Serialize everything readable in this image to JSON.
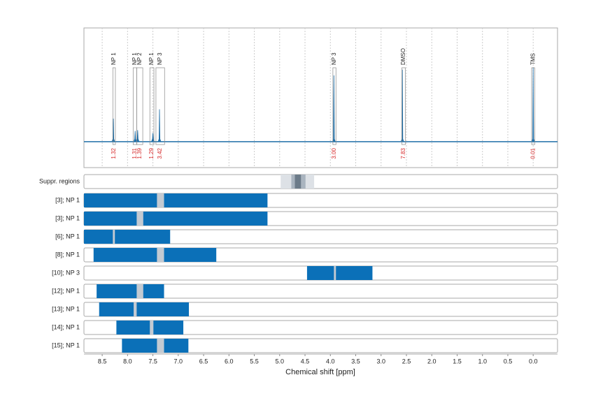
{
  "chart_data": {
    "type": "nmr",
    "xlabel": "Chemical shift [ppm]",
    "xlim": [
      8.86,
      -0.48
    ],
    "xticks": [
      8.5,
      {
        "value": 8.0,
        "label": "8.0"
      },
      7.5,
      {
        "value": 7.0,
        "label": "7.0"
      },
      6.5,
      {
        "value": 6.0,
        "label": "6.0"
      },
      5.5,
      {
        "value": 5.0,
        "label": "5.0"
      },
      4.5,
      {
        "value": 4.0,
        "label": "4.0"
      },
      3.5,
      {
        "value": 3.0,
        "label": "3.0"
      },
      2.5,
      {
        "value": 2.0,
        "label": "2.0"
      },
      1.5,
      {
        "value": 1.0,
        "label": "1.0"
      },
      0.5,
      {
        "value": 0.0,
        "label": "0.0"
      }
    ],
    "grid": true,
    "ylim": [
      -0.36,
      1.58
    ],
    "color": "#1f6fa8",
    "peaks": [
      {
        "ppm": 8.28,
        "height": 0.32
      },
      {
        "ppm": 7.85,
        "height": 0.15
      },
      {
        "ppm": 7.8,
        "height": 0.16
      },
      {
        "ppm": 7.5,
        "height": 0.12
      },
      {
        "ppm": 7.37,
        "height": 0.45
      },
      {
        "ppm": 3.93,
        "height": 0.92
      },
      {
        "ppm": 2.58,
        "height": 1.0
      },
      {
        "ppm": 0.0,
        "height": 1.03
      }
    ],
    "annotations": [
      {
        "label": "NP 1",
        "start": 8.29,
        "end": 8.24,
        "integral": "1.32"
      },
      {
        "label": "NP 1",
        "start": 7.89,
        "end": 7.82,
        "integral": "1.31"
      },
      {
        "label": "NP 2",
        "start": 7.82,
        "end": 7.7,
        "integral": "1.39"
      },
      {
        "label": "NP 1",
        "start": 7.56,
        "end": 7.48,
        "integral": "1.29"
      },
      {
        "label": "NP 3",
        "start": 7.44,
        "end": 7.27,
        "integral": "3.42"
      },
      {
        "label": "NP 3",
        "start": 3.95,
        "end": 3.89,
        "integral": "3.00"
      },
      {
        "label": "DMSO",
        "start": 2.59,
        "end": 2.52,
        "integral": "7.83"
      },
      {
        "label": "TMS",
        "start": 0.03,
        "end": -0.03,
        "integral": "0.01"
      }
    ],
    "suppression": {
      "label": "Suppr. regions",
      "regions": [
        {
          "start": 4.98,
          "end": 4.32,
          "color": "#dde1e6"
        },
        {
          "start": 4.77,
          "end": 4.49,
          "color": "#a9b4bf"
        },
        {
          "start": 4.7,
          "end": 4.58,
          "color": "#6c7b89"
        }
      ]
    },
    "bar_color": "#0b70b8",
    "marker_color": "#c3cad2",
    "rows": [
      {
        "label": "[3]; NP 1",
        "start": 8.86,
        "end": 5.24,
        "marker_start": 7.42,
        "marker_end": 7.28
      },
      {
        "label": "[3]; NP 1",
        "start": 8.86,
        "end": 5.24,
        "marker_start": 7.82,
        "marker_end": 7.69
      },
      {
        "label": "[6]; NP 1",
        "start": 8.86,
        "end": 7.16,
        "marker_start": 8.29,
        "marker_end": 8.25
      },
      {
        "label": "[8]; NP 1",
        "start": 8.67,
        "end": 6.25,
        "marker_start": 7.42,
        "marker_end": 7.28
      },
      {
        "label": "[10]; NP 3",
        "start": 4.46,
        "end": 3.17,
        "marker_start": 3.93,
        "marker_end": 3.89
      },
      {
        "label": "[12]; NP 1",
        "start": 8.61,
        "end": 7.28,
        "marker_start": 7.82,
        "marker_end": 7.69
      },
      {
        "label": "[13]; NP 1",
        "start": 8.56,
        "end": 6.79,
        "marker_start": 7.88,
        "marker_end": 7.82
      },
      {
        "label": "[14]; NP 1",
        "start": 8.22,
        "end": 6.9,
        "marker_start": 7.56,
        "marker_end": 7.49
      },
      {
        "label": "[15]; NP 1",
        "start": 8.11,
        "end": 6.8,
        "marker_start": 7.42,
        "marker_end": 7.28
      }
    ]
  }
}
